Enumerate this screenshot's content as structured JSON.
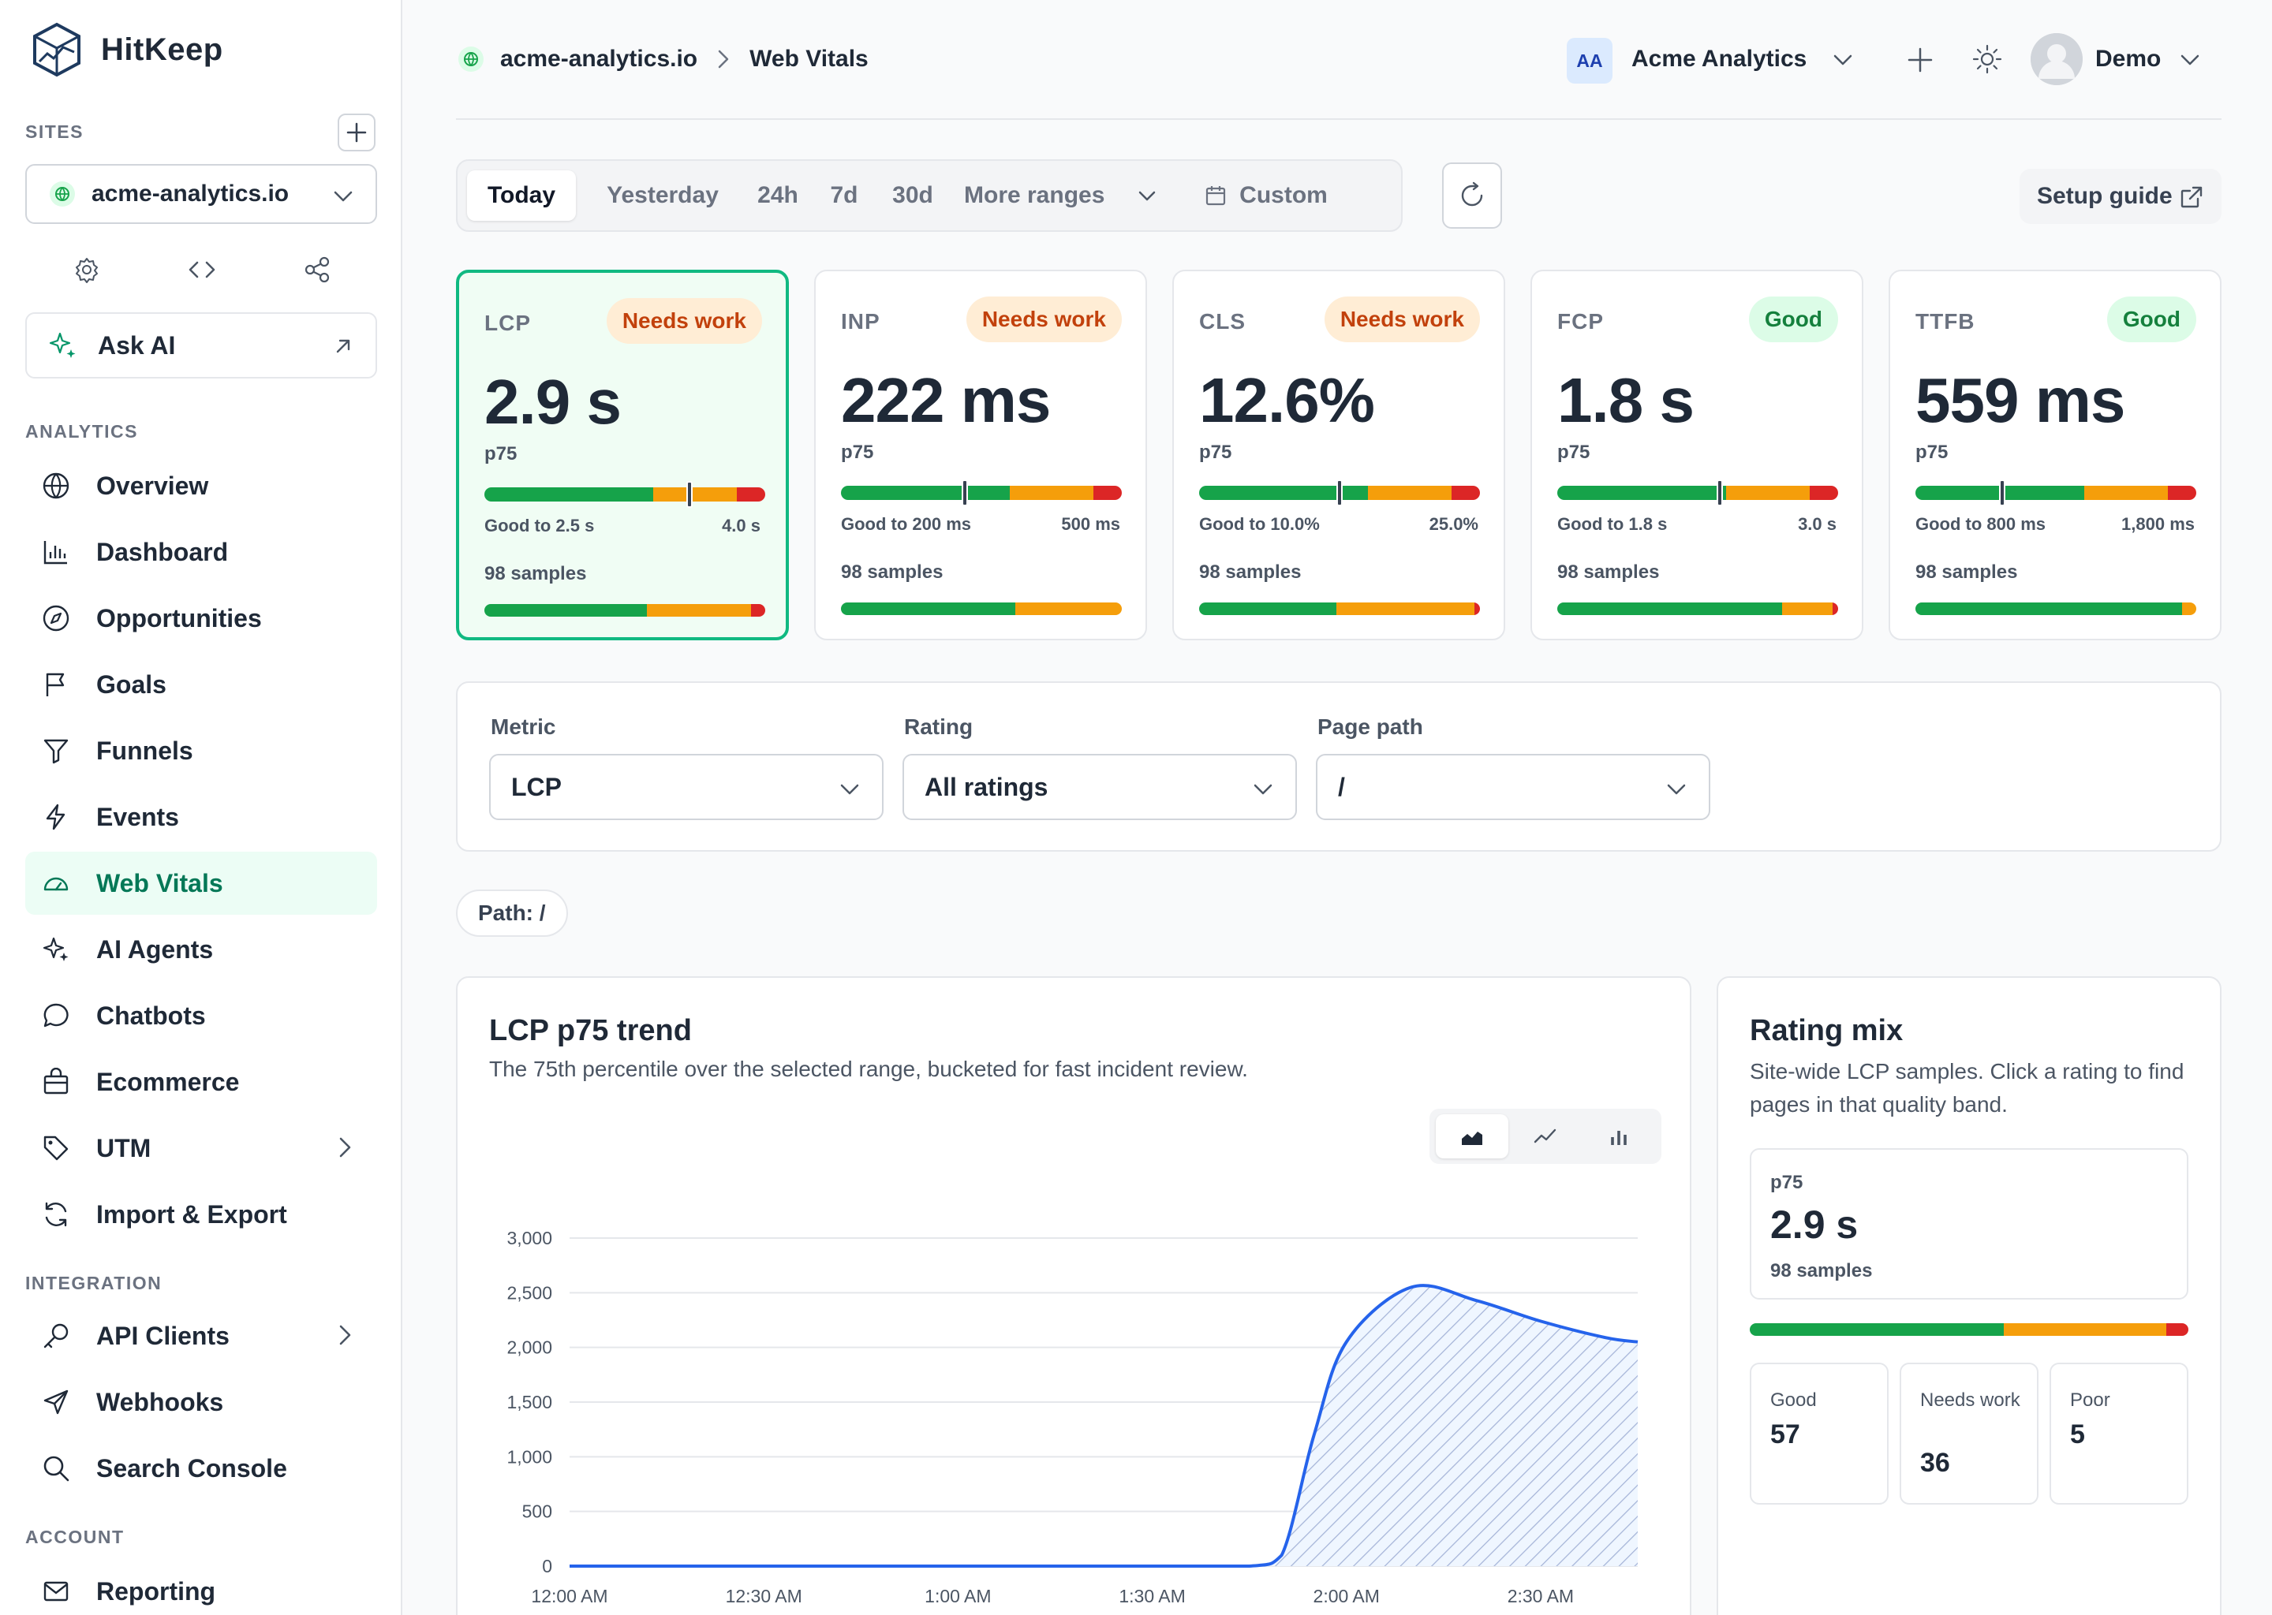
{
  "app": {
    "name": "HitKeep"
  },
  "sidebar": {
    "sites_label": "SITES",
    "site_selected": "acme-analytics.io",
    "ask_ai": "Ask AI",
    "analytics_label": "ANALYTICS",
    "analytics_items": [
      {
        "label": "Overview",
        "icon": "globe-icon"
      },
      {
        "label": "Dashboard",
        "icon": "bar-chart-icon"
      },
      {
        "label": "Opportunities",
        "icon": "compass-icon"
      },
      {
        "label": "Goals",
        "icon": "flag-icon"
      },
      {
        "label": "Funnels",
        "icon": "funnel-icon"
      },
      {
        "label": "Events",
        "icon": "bolt-icon"
      },
      {
        "label": "Web Vitals",
        "icon": "gauge-icon",
        "active": true
      },
      {
        "label": "AI Agents",
        "icon": "sparkles-icon"
      },
      {
        "label": "Chatbots",
        "icon": "chat-icon"
      },
      {
        "label": "Ecommerce",
        "icon": "bag-icon"
      },
      {
        "label": "UTM",
        "icon": "tag-icon"
      },
      {
        "label": "Import & Export",
        "icon": "sync-icon"
      }
    ],
    "integration_label": "INTEGRATION",
    "integration_items": [
      {
        "label": "API Clients",
        "icon": "key-icon"
      },
      {
        "label": "Webhooks",
        "icon": "send-icon"
      },
      {
        "label": "Search Console",
        "icon": "search-icon"
      }
    ],
    "account_label": "ACCOUNT",
    "account_items": [
      {
        "label": "Reporting",
        "icon": "mail-icon"
      }
    ]
  },
  "header": {
    "breadcrumb_site": "acme-analytics.io",
    "breadcrumb_page": "Web Vitals",
    "org_initials": "AA",
    "org_name": "Acme Analytics",
    "user_name": "Demo"
  },
  "ranges": {
    "items": [
      "Today",
      "Yesterday",
      "24h",
      "7d",
      "30d",
      "More ranges",
      "Custom"
    ],
    "active": "Today",
    "setup_guide": "Setup guide"
  },
  "colors": {
    "good": "#16a34a",
    "needs_work": "#f59e0b",
    "poor": "#dc2626",
    "accent": "#10b981",
    "line": "#2563eb"
  },
  "vitals": [
    {
      "metric": "LCP",
      "status": "Needs work",
      "tone": "warn",
      "value": "2.9 s",
      "p": "p75",
      "good_to": "Good to 2.5 s",
      "poor_at": "4.0 s",
      "samples": "98 samples",
      "scale": [
        0.6,
        0.3,
        0.1
      ],
      "marker": 0.73,
      "mix": [
        0.58,
        0.37,
        0.05
      ],
      "selected": true
    },
    {
      "metric": "INP",
      "status": "Needs work",
      "tone": "warn",
      "value": "222 ms",
      "p": "p75",
      "good_to": "Good to 200 ms",
      "poor_at": "500 ms",
      "samples": "98 samples",
      "scale": [
        0.6,
        0.3,
        0.1
      ],
      "marker": 0.44,
      "mix": [
        0.62,
        0.38,
        0.0
      ]
    },
    {
      "metric": "CLS",
      "status": "Needs work",
      "tone": "warn",
      "value": "12.6%",
      "p": "p75",
      "good_to": "Good to 10.0%",
      "poor_at": "25.0%",
      "samples": "98 samples",
      "scale": [
        0.6,
        0.3,
        0.1
      ],
      "marker": 0.5,
      "mix": [
        0.49,
        0.49,
        0.02
      ]
    },
    {
      "metric": "FCP",
      "status": "Good",
      "tone": "good",
      "value": "1.8 s",
      "p": "p75",
      "good_to": "Good to 1.8 s",
      "poor_at": "3.0 s",
      "samples": "98 samples",
      "scale": [
        0.6,
        0.3,
        0.1
      ],
      "marker": 0.58,
      "mix": [
        0.8,
        0.18,
        0.02
      ]
    },
    {
      "metric": "TTFB",
      "status": "Good",
      "tone": "good",
      "value": "559 ms",
      "p": "p75",
      "good_to": "Good to 800 ms",
      "poor_at": "1,800 ms",
      "samples": "98 samples",
      "scale": [
        0.6,
        0.3,
        0.1
      ],
      "marker": 0.31,
      "mix": [
        0.95,
        0.05,
        0.0
      ]
    }
  ],
  "filters": {
    "metric_label": "Metric",
    "metric_value": "LCP",
    "rating_label": "Rating",
    "rating_value": "All ratings",
    "path_label": "Page path",
    "path_value": "/"
  },
  "path_chip": "Path: /",
  "trend": {
    "title": "LCP p75 trend",
    "subtitle": "The 75th percentile over the selected range, bucketed for fast incident review."
  },
  "chart_data": {
    "type": "area",
    "x": [
      "12:00 AM",
      "12:15 AM",
      "12:30 AM",
      "12:45 AM",
      "1:00 AM",
      "1:15 AM",
      "1:30 AM",
      "1:45 AM",
      "1:50 AM",
      "1:55 AM",
      "2:00 AM",
      "2:10 AM",
      "2:20 AM",
      "2:30 AM",
      "2:40 AM",
      "2:45 AM"
    ],
    "minutes": [
      0,
      15,
      30,
      45,
      60,
      75,
      90,
      105,
      110,
      115,
      120,
      130,
      140,
      150,
      160,
      165
    ],
    "y": [
      0,
      0,
      0,
      0,
      0,
      0,
      0,
      0,
      100,
      1200,
      2050,
      2550,
      2430,
      2240,
      2090,
      2050
    ],
    "ylim": [
      0,
      3000
    ],
    "yticks": [
      "0",
      "500",
      "1,000",
      "1,500",
      "2,000",
      "2,500",
      "3,000"
    ],
    "xticks": [
      "12:00 AM",
      "12:30 AM",
      "1:00 AM",
      "1:30 AM",
      "2:00 AM",
      "2:30 AM"
    ],
    "grid": true
  },
  "rating_mix": {
    "title": "Rating mix",
    "subtitle": "Site-wide LCP samples. Click a rating to find pages in that quality band.",
    "p_label": "p75",
    "p_value": "2.9 s",
    "samples": "98 samples",
    "good_label": "Good",
    "good_value": "57",
    "needs_label": "Needs work",
    "needs_value": "36",
    "poor_label": "Poor",
    "poor_value": "5",
    "shares": [
      0.58,
      0.37,
      0.05
    ]
  }
}
